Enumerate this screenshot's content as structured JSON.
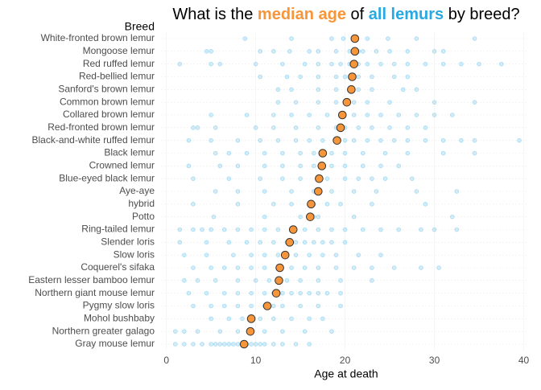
{
  "chart_data": {
    "type": "dotplot",
    "title_parts": [
      "What is the ",
      "median age",
      " of ",
      "all lemurs",
      " by breed?"
    ],
    "title_colors": [
      "#000000",
      "#f7953a",
      "#000000",
      "#29a9e1",
      "#000000"
    ],
    "y_label": "Breed",
    "x_label": "Age at death",
    "categories": [
      "White-fronted brown lemur",
      "Mongoose lemur",
      "Red ruffed lemur",
      "Red-bellied lemur",
      "Sanford's brown lemur",
      "Common brown lemur",
      "Collared brown lemur",
      "Red-fronted brown lemur",
      "Black-and-white ruffed lemur",
      "Black lemur",
      "Crowned lemur",
      "Blue-eyed black lemur",
      "Aye-aye",
      "hybrid",
      "Potto",
      "Ring-tailed lemur",
      "Slender loris",
      "Slow loris",
      "Coquerel's sifaka",
      "Eastern lesser bamboo lemur",
      "Northern giant mouse lemur",
      "Pygmy slow loris",
      "Mohol bushbaby",
      "Northern greater galago",
      "Gray mouse lemur"
    ],
    "medians": [
      21.1,
      21.1,
      21.0,
      20.8,
      20.7,
      20.2,
      19.7,
      19.5,
      19.1,
      17.5,
      17.4,
      17.1,
      17.0,
      16.2,
      16.1,
      14.2,
      13.8,
      13.3,
      12.7,
      12.6,
      12.3,
      11.3,
      9.5,
      9.4,
      8.7
    ],
    "median_color": "#f7953a",
    "point_color": "#29a9e1",
    "points": [
      [
        8.8,
        14,
        18.5,
        19.8,
        21,
        22.5,
        24.8,
        28,
        34.5
      ],
      [
        4.5,
        5,
        10.5,
        12,
        13.8,
        16,
        17,
        19,
        20.5,
        21.5,
        22,
        23.5,
        25,
        27,
        30,
        31
      ],
      [
        1.5,
        5,
        6,
        10,
        13,
        15.5,
        17,
        18.5,
        19.5,
        20.5,
        21.5,
        22.5,
        24,
        25.5,
        27,
        29,
        31,
        33,
        35,
        37.5
      ],
      [
        10.5,
        13.5,
        15,
        17,
        19,
        20,
        21.5,
        23,
        25.5,
        27
      ],
      [
        12.5,
        14,
        17,
        19,
        20.5,
        21.5,
        23,
        26.5,
        28
      ],
      [
        12.5,
        14.5,
        17,
        19,
        20,
        21,
        22.5,
        25,
        30,
        34.5
      ],
      [
        5,
        9,
        12,
        14,
        16,
        18,
        19.5,
        21,
        22.5,
        24,
        26,
        28,
        30,
        32
      ],
      [
        3,
        3.5,
        5.5,
        10,
        12,
        14.5,
        17,
        19,
        20,
        21.5,
        23,
        25,
        27,
        29
      ],
      [
        2.5,
        5,
        8,
        10.5,
        12.5,
        14.5,
        16,
        17.5,
        19,
        20,
        21,
        22.5,
        24,
        25.5,
        27,
        29,
        31,
        33,
        34.5,
        39.5
      ],
      [
        5.5,
        7,
        9,
        11,
        13,
        15,
        16.5,
        17.5,
        18.5,
        20,
        22,
        24.5,
        27,
        31,
        34.5
      ],
      [
        2.5,
        6,
        8,
        11,
        13,
        15,
        16.5,
        17.5,
        18.5,
        20,
        22,
        24,
        26
      ],
      [
        3,
        7,
        10.5,
        13,
        15,
        17,
        18,
        20,
        21.5,
        23,
        24.5,
        27.5
      ],
      [
        5.5,
        8,
        11,
        14,
        16.5,
        17,
        18.5,
        21,
        23.5,
        28,
        32.5
      ],
      [
        3,
        8,
        12,
        14,
        16,
        16.5,
        18,
        19.5,
        23,
        29
      ],
      [
        5.3,
        11,
        15,
        16,
        16.5,
        17,
        21,
        32
      ],
      [
        1.5,
        3,
        4,
        5,
        6.5,
        8,
        9.5,
        11,
        12.5,
        14,
        15.5,
        17,
        18.5,
        20,
        22,
        24,
        26,
        28.5,
        30,
        32.5
      ],
      [
        1.5,
        4.5,
        7,
        9,
        10.5,
        12,
        13.5,
        14.5,
        15.5,
        16.5,
        17.5,
        18.5,
        20
      ],
      [
        2,
        4.5,
        7.5,
        9.5,
        11,
        12.5,
        13.5,
        14.5,
        16,
        17.5,
        19,
        21.5,
        24
      ],
      [
        3,
        5,
        6.5,
        8,
        9.5,
        11,
        12.5,
        14,
        15.5,
        17,
        19,
        21,
        23,
        25.5,
        28.5,
        30.5
      ],
      [
        2,
        3.5,
        5.5,
        8,
        10,
        11.5,
        12.5,
        13.5,
        15,
        17,
        19.5,
        23
      ],
      [
        2.5,
        4.5,
        6.5,
        8,
        9.5,
        11,
        12,
        13,
        14,
        15,
        16,
        17,
        18,
        19.5
      ],
      [
        3,
        5,
        6.5,
        8,
        9.5,
        11,
        12,
        13,
        15,
        17,
        19.5
      ],
      [
        5,
        7,
        8.5,
        9.5,
        10.5,
        12,
        14,
        16,
        17.5
      ],
      [
        1,
        2,
        3.5,
        6,
        8,
        9.5,
        11,
        13,
        15.5,
        18.5
      ],
      [
        1,
        2,
        3,
        4,
        5,
        5.5,
        6,
        6.5,
        7,
        7.5,
        8,
        8.5,
        9,
        9.5,
        10,
        10.5,
        11,
        12,
        13,
        14.5,
        16
      ]
    ],
    "xlim": [
      -0.6,
      40.4
    ],
    "xticks": [
      0,
      10,
      20,
      30,
      40
    ],
    "grid": true
  }
}
